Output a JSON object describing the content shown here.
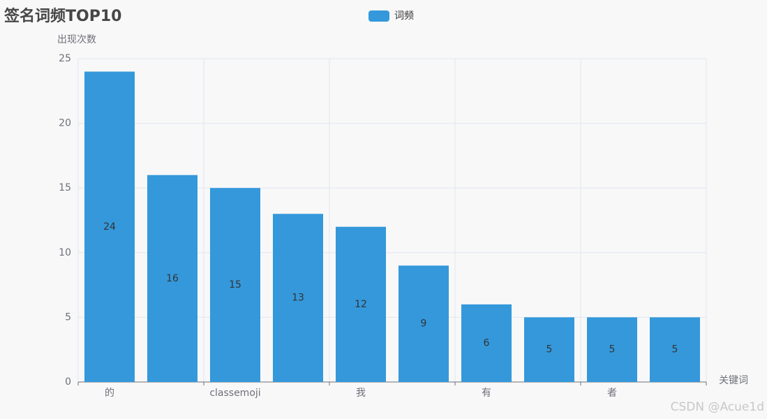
{
  "chart_data": {
    "type": "bar",
    "title": "签名词频TOP10",
    "watermark": "CSDN @Acue1d",
    "y_label": "出现次数",
    "x_label": "关键词",
    "categories": [
      "的",
      null,
      "classemoji",
      null,
      "我",
      null,
      "有",
      null,
      "者",
      null
    ],
    "series": [
      {
        "name": "词频",
        "color": "#3498db",
        "values": [
          24,
          16,
          15,
          13,
          12,
          9,
          6,
          5,
          5,
          5
        ]
      }
    ],
    "ylim": [
      0,
      25
    ],
    "yticks": [
      0,
      5,
      10,
      15,
      20,
      25
    ],
    "grid": true,
    "legend": "top"
  }
}
